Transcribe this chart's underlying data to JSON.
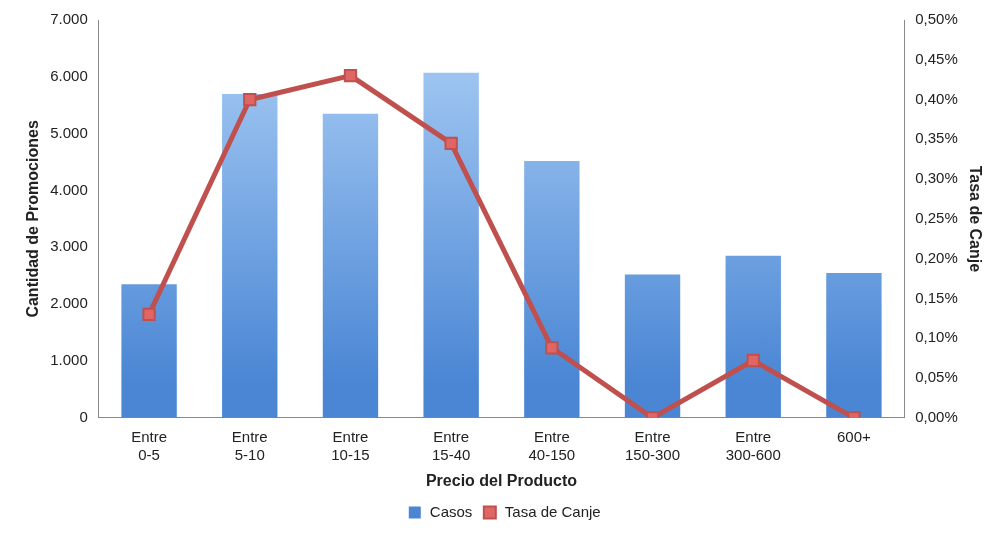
{
  "chart_data": {
    "type": "bar",
    "xlabel": "Precio del Producto",
    "ylabel": "Cantidad de Promociones",
    "y2label": "Tasa de Canje",
    "categories": [
      "Entre 0-5",
      "Entre 5-10",
      "Entre 10-15",
      "Entre 15-40",
      "Entre 40-150",
      "Entre 150-300",
      "Entre 300-600",
      "600+"
    ],
    "series": [
      {
        "name": "Casos",
        "color": "#4a86d4",
        "values": [
          2350,
          5700,
          5350,
          6070,
          4520,
          2520,
          2850,
          2550
        ]
      },
      {
        "name": "Tasa de Canje",
        "type": "line",
        "axis": "y2",
        "marker": "square",
        "color": "#c0504d",
        "values": [
          0.13,
          0.4,
          0.43,
          0.345,
          0.088,
          0,
          0.072,
          0
        ]
      }
    ],
    "ylim": [
      0,
      7000
    ],
    "yticks": [
      0,
      {
        "value": 1000,
        "label": "1.000"
      },
      {
        "value": 2000,
        "label": "2.000"
      },
      {
        "value": 3000,
        "label": "3.000"
      },
      {
        "value": 4000,
        "label": "4.000"
      },
      {
        "value": 5000,
        "label": "5.000"
      },
      {
        "value": 6000,
        "label": "6.000"
      },
      {
        "value": 7000,
        "label": "7.000"
      }
    ],
    "y2lim": [
      0,
      0.5
    ],
    "y2ticks": [
      {
        "value": 0,
        "label": "0,00%"
      },
      {
        "value": 0.05,
        "label": "0,05%"
      },
      {
        "value": 0.1,
        "label": "0,10%"
      },
      {
        "value": 0.15,
        "label": "0,15%"
      },
      {
        "value": 0.2,
        "label": "0,20%"
      },
      {
        "value": 0.25,
        "label": "0,25%"
      },
      {
        "value": 0.3,
        "label": "0,30%"
      },
      {
        "value": 0.35,
        "label": "0,35%"
      },
      {
        "value": 0.4,
        "label": "0,40%"
      },
      {
        "value": 0.45,
        "label": "0,45%"
      },
      {
        "value": 0.5,
        "label": "0,50%"
      }
    ],
    "legend": "bottom"
  }
}
